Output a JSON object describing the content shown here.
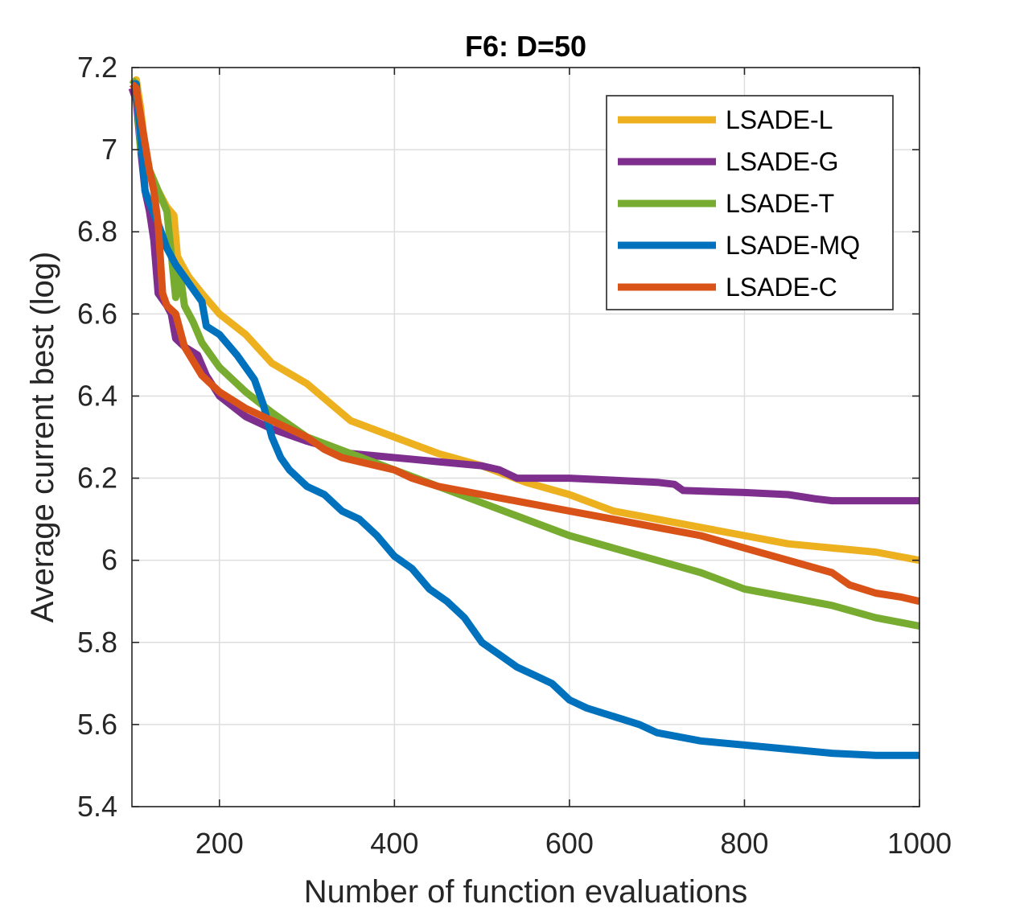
{
  "chart_data": {
    "type": "line",
    "title": "F6: D=50",
    "xlabel": "Number of function evaluations",
    "ylabel": "Average current best (log)",
    "xlim": [
      100,
      1000
    ],
    "ylim": [
      5.4,
      7.2
    ],
    "xticks": [
      200,
      400,
      600,
      800,
      1000
    ],
    "xtick_labels": [
      "200",
      "400",
      "600",
      "800",
      "1000"
    ],
    "yticks": [
      5.4,
      5.6,
      5.8,
      6.0,
      6.2,
      6.4,
      6.6,
      6.8,
      7.0,
      7.2
    ],
    "ytick_labels": [
      "5.4",
      "5.6",
      "5.8",
      "6",
      "6.2",
      "6.4",
      "6.6",
      "6.8",
      "7",
      "7.2"
    ],
    "grid": true,
    "legend_position": "top-right",
    "series": [
      {
        "name": "LSADE-L",
        "color": "#EDB120",
        "x": [
          100,
          105,
          110,
          115,
          120,
          130,
          140,
          148,
          152,
          157,
          165,
          180,
          200,
          230,
          260,
          300,
          350,
          400,
          450,
          500,
          550,
          600,
          650,
          700,
          750,
          800,
          850,
          900,
          950,
          1000
        ],
        "y": [
          7.16,
          7.17,
          7.1,
          7.0,
          6.95,
          6.9,
          6.86,
          6.84,
          6.74,
          6.72,
          6.69,
          6.65,
          6.6,
          6.55,
          6.48,
          6.43,
          6.34,
          6.3,
          6.26,
          6.23,
          6.19,
          6.16,
          6.12,
          6.1,
          6.08,
          6.06,
          6.04,
          6.03,
          6.02,
          6.0
        ]
      },
      {
        "name": "LSADE-G",
        "color": "#7E2F8E",
        "x": [
          100,
          105,
          110,
          115,
          120,
          125,
          130,
          140,
          145,
          150,
          160,
          175,
          185,
          200,
          230,
          260,
          300,
          350,
          400,
          450,
          500,
          520,
          540,
          600,
          650,
          700,
          720,
          730,
          800,
          850,
          880,
          900,
          950,
          1000
        ],
        "y": [
          7.15,
          7.12,
          7.0,
          6.9,
          6.85,
          6.78,
          6.65,
          6.62,
          6.6,
          6.54,
          6.52,
          6.5,
          6.45,
          6.4,
          6.35,
          6.32,
          6.29,
          6.26,
          6.25,
          6.24,
          6.23,
          6.22,
          6.2,
          6.2,
          6.195,
          6.19,
          6.185,
          6.17,
          6.165,
          6.16,
          6.15,
          6.145,
          6.145,
          6.145
        ]
      },
      {
        "name": "LSADE-T",
        "color": "#77AC30",
        "x": [
          100,
          105,
          110,
          120,
          130,
          140,
          150,
          155,
          160,
          170,
          180,
          200,
          230,
          260,
          300,
          350,
          400,
          450,
          500,
          550,
          600,
          650,
          700,
          750,
          800,
          850,
          900,
          950,
          1000
        ],
        "y": [
          7.17,
          7.16,
          7.0,
          6.95,
          6.9,
          6.85,
          6.64,
          6.7,
          6.62,
          6.58,
          6.53,
          6.47,
          6.41,
          6.36,
          6.3,
          6.26,
          6.22,
          6.18,
          6.14,
          6.1,
          6.06,
          6.03,
          6.0,
          5.97,
          5.93,
          5.91,
          5.89,
          5.86,
          5.84
        ]
      },
      {
        "name": "LSADE-MQ",
        "color": "#0072BD",
        "x": [
          100,
          105,
          108,
          112,
          115,
          120,
          130,
          140,
          150,
          160,
          170,
          180,
          185,
          200,
          220,
          240,
          250,
          260,
          270,
          280,
          300,
          320,
          340,
          360,
          380,
          400,
          420,
          440,
          460,
          480,
          500,
          520,
          540,
          560,
          580,
          600,
          620,
          650,
          680,
          700,
          750,
          800,
          850,
          900,
          950,
          1000
        ],
        "y": [
          7.16,
          7.16,
          7.08,
          6.98,
          6.9,
          6.87,
          6.82,
          6.76,
          6.72,
          6.69,
          6.66,
          6.63,
          6.57,
          6.55,
          6.5,
          6.44,
          6.38,
          6.3,
          6.25,
          6.22,
          6.18,
          6.16,
          6.12,
          6.1,
          6.06,
          6.01,
          5.98,
          5.93,
          5.9,
          5.86,
          5.8,
          5.77,
          5.74,
          5.72,
          5.7,
          5.66,
          5.64,
          5.62,
          5.6,
          5.58,
          5.56,
          5.55,
          5.54,
          5.53,
          5.525,
          5.525
        ]
      },
      {
        "name": "LSADE-C",
        "color": "#D95319",
        "x": [
          100,
          105,
          110,
          120,
          125,
          130,
          135,
          140,
          150,
          160,
          180,
          200,
          230,
          260,
          300,
          320,
          340,
          360,
          380,
          400,
          420,
          450,
          500,
          550,
          600,
          650,
          700,
          750,
          800,
          850,
          900,
          920,
          950,
          980,
          1000
        ],
        "y": [
          7.16,
          7.15,
          7.08,
          6.95,
          6.9,
          6.82,
          6.65,
          6.62,
          6.6,
          6.52,
          6.45,
          6.41,
          6.37,
          6.34,
          6.3,
          6.27,
          6.25,
          6.24,
          6.23,
          6.22,
          6.2,
          6.18,
          6.16,
          6.14,
          6.12,
          6.1,
          6.08,
          6.06,
          6.03,
          6.0,
          5.97,
          5.94,
          5.92,
          5.91,
          5.9
        ]
      }
    ]
  }
}
